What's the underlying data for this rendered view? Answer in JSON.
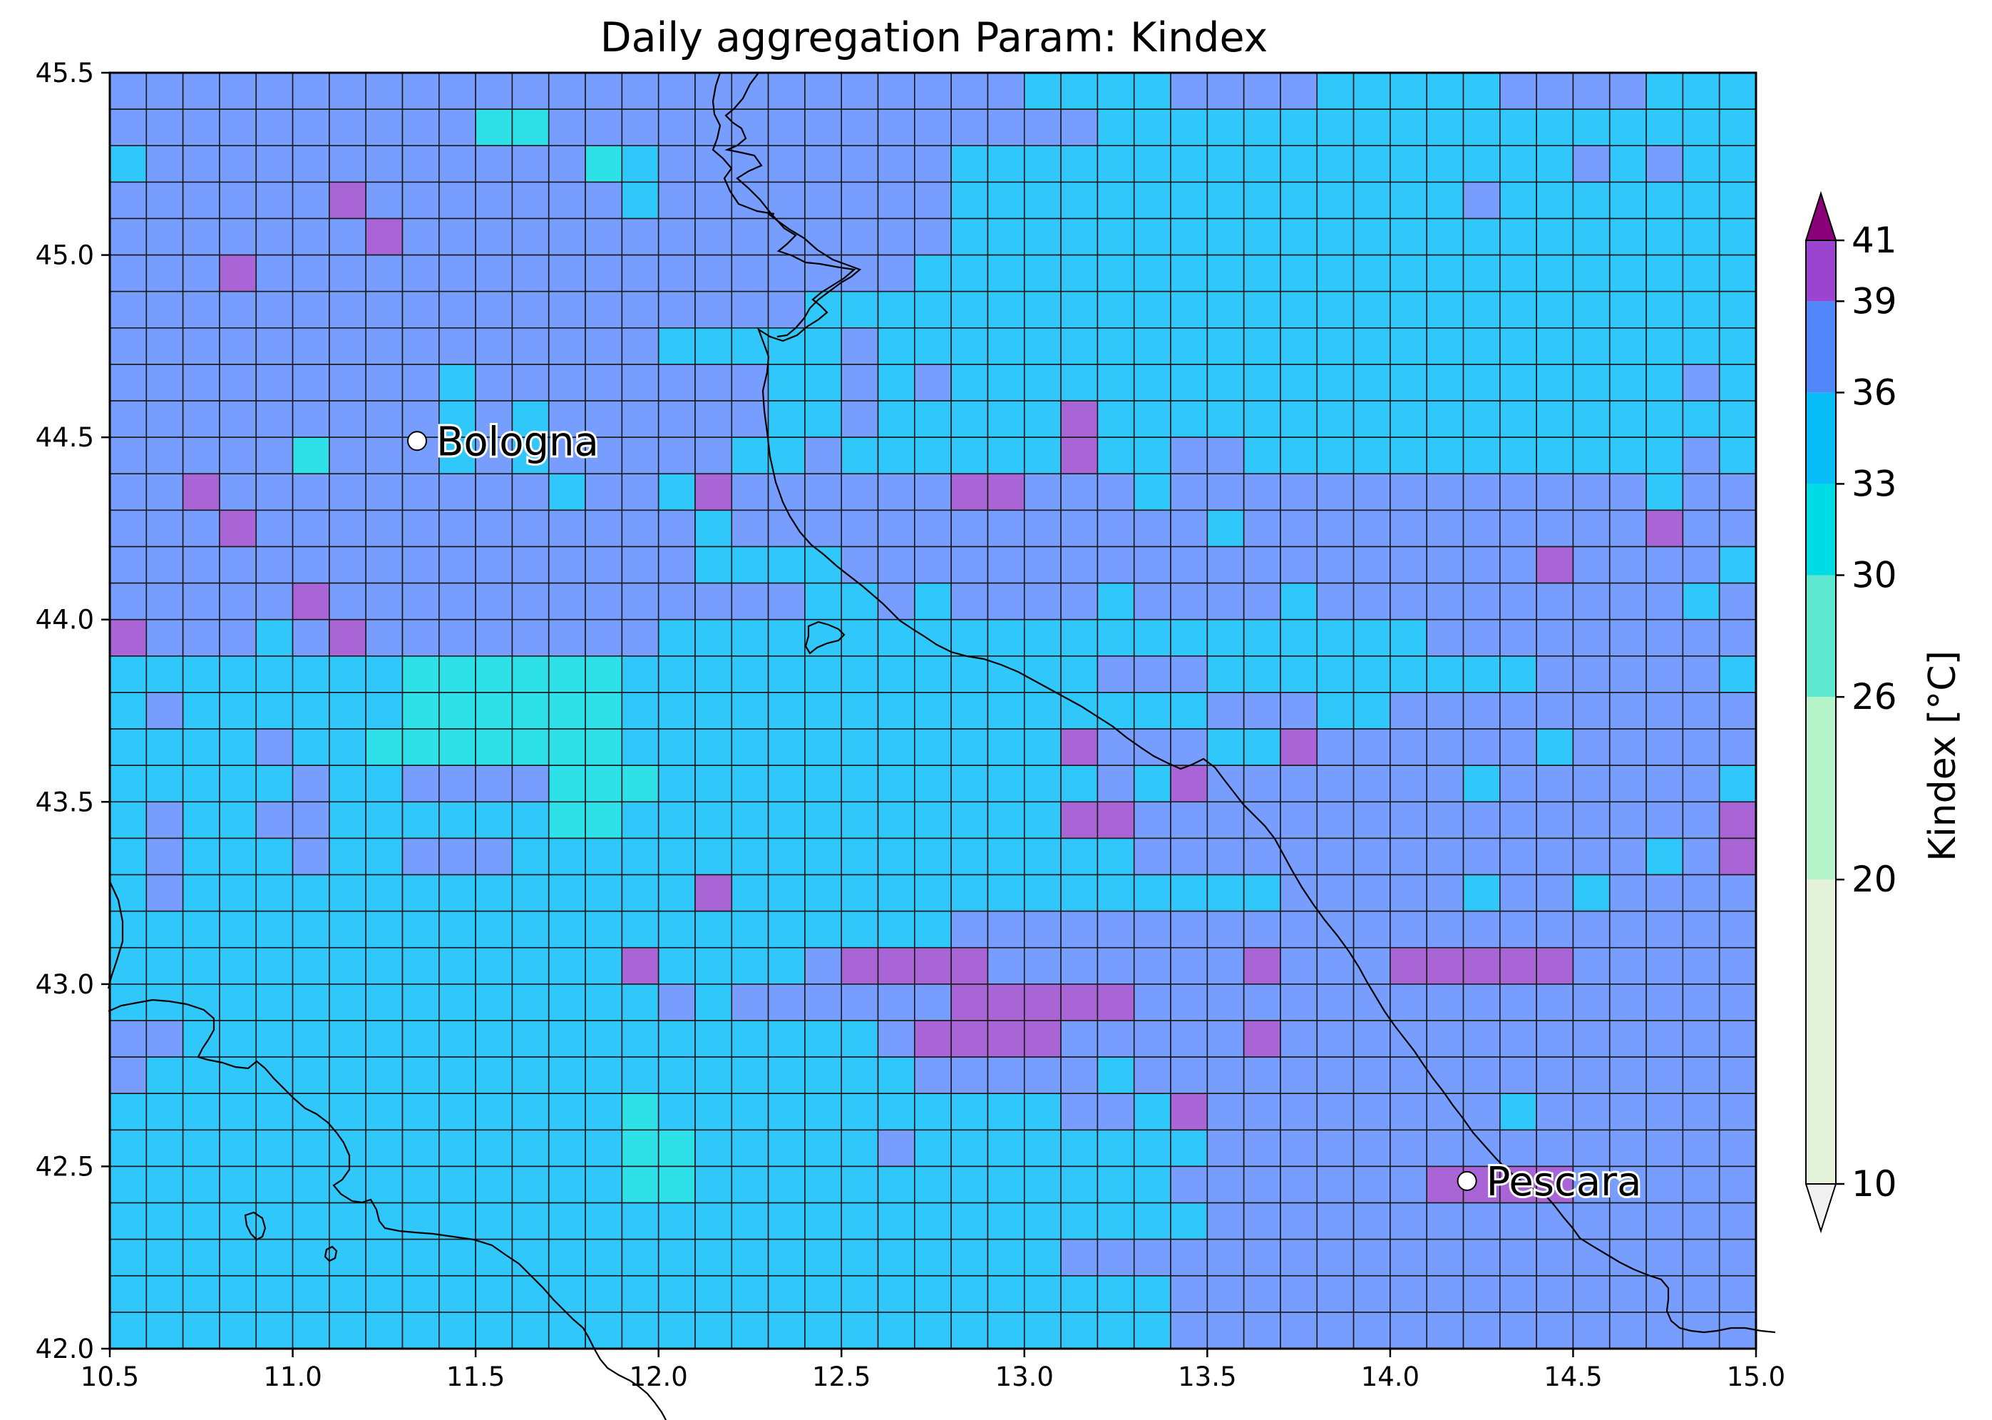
{
  "chart_data": {
    "type": "heatmap",
    "title": "Daily aggregation Param: Kindex",
    "xlabel": "",
    "ylabel": "",
    "x_ticks": [
      "10.5",
      "11.0",
      "11.5",
      "12.0",
      "12.5",
      "13.0",
      "13.5",
      "14.0",
      "14.5",
      "15.0"
    ],
    "y_ticks": [
      "42.0",
      "42.5",
      "43.0",
      "43.5",
      "44.0",
      "44.5",
      "45.0",
      "45.5"
    ],
    "xlim": [
      10.5,
      15.0
    ],
    "ylim": [
      42.0,
      45.5
    ],
    "grid_resolution_deg": 0.1,
    "grid_start": {
      "lon": 10.5,
      "lat": 42.0
    },
    "grid_cols": 45,
    "grid_rows": 35,
    "cities": [
      {
        "name": "Bologna",
        "lon": 11.34,
        "lat": 44.49
      },
      {
        "name": "Pescara",
        "lon": 14.21,
        "lat": 42.46
      }
    ],
    "colorbar": {
      "label": "Kindex [°C]",
      "tick_labels": [
        "10",
        "20",
        "26",
        "30",
        "33",
        "36",
        "39",
        "41"
      ],
      "boundaries": [
        10,
        20,
        26,
        30,
        33,
        36,
        39,
        41
      ],
      "colors": [
        "#e3f2d9",
        "#b4f4c8",
        "#5ee8cf",
        "#00dce5",
        "#09bef8",
        "#5286fb",
        "#9b44cf"
      ],
      "under_color": "#f0f0f0",
      "over_color": "#8a0078"
    },
    "class_colors": [
      "#2ee0e8",
      "#30c8fa",
      "#779eff",
      "#a964d6",
      "#a02f9a"
    ],
    "class_values": [
      31.5,
      34.5,
      37.5,
      40.0,
      41.5
    ],
    "grid_rows_top_to_bottom": [
      "222222222222222222222222211112222111112222111",
      "222222222200222222222222222111111111111111111",
      "122222222222201222222221111111111111111121211",
      "222222322222221222222221111111111111121111111",
      "222222232222222222222221111111111111111111111",
      "222322222222222222222211111111111111111111111",
      "222222222222222222211111111111111111111111111",
      "222222222222222111112111111111111111111111111",
      "222222222122222222112121111111111111111111121",
      "222222222121222222112111113111111111111111111",
      "222220222121222221121111113112211111111111121",
      "223222222222122132222223322212222222222222122",
      "222322222222222212222222222222122222222222322",
      "222222222222222211112222222222222222222322221",
      "222223222222222222211212222122221222222222212",
      "322212322222222111111111111111111111222222222",
      "111111110000001111111111111222111111111222221",
      "121111110000001111111111111111222112222222222",
      "111121100000001111111111113222113222222122222",
      "111112112222000111111111111213222222212222221",
      "121122111111001111111111113322222222222222223",
      "121112112221111111111111111122222222222222123",
      "121111111111111131111111111111112222212212222",
      "111111111111111111111112222222222222222222222",
      "111111111111113111123333222222232223333322222",
      "111111111111111212222223333322222222222222222",
      "221111111111111111111233332222232222222222222",
      "211111111111111111111122222122222222222222222",
      "111111111111110111111111112213222222221222222",
      "111111111111110011111211111111222222222222222",
      "111111111111110011111111111112222222333322222",
      "111111111111111111111111111111222222222222222",
      "111111111111111111111111112222222222222222222",
      "111111111111111111111111111112222222222222222",
      "111111111111111111111111111112222222222222222"
    ]
  }
}
